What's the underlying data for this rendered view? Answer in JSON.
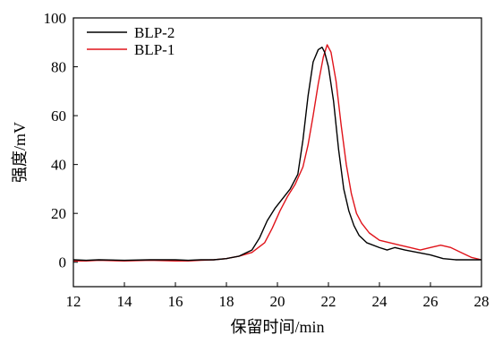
{
  "chart_data": {
    "type": "line",
    "xlabel": "保留时间/min",
    "ylabel": "强度/mV",
    "xlim": [
      12,
      28
    ],
    "ylim": [
      -10,
      100
    ],
    "xticks": [
      12,
      14,
      16,
      18,
      20,
      22,
      24,
      26,
      28
    ],
    "yticks": [
      0,
      20,
      40,
      60,
      80,
      100
    ],
    "grid": false,
    "legend_position": "top-left",
    "series": [
      {
        "name": "BLP-2",
        "color": "#000000",
        "x": [
          12,
          12.5,
          13,
          14,
          15,
          16,
          16.5,
          17,
          17.5,
          18,
          18.5,
          19,
          19.3,
          19.6,
          19.9,
          20.2,
          20.5,
          20.8,
          21.0,
          21.2,
          21.4,
          21.6,
          21.75,
          21.85,
          22.0,
          22.2,
          22.4,
          22.6,
          22.8,
          23.0,
          23.2,
          23.5,
          24.0,
          24.3,
          24.6,
          25.0,
          25.5,
          26.0,
          26.5,
          27.0,
          27.5,
          28
        ],
        "y": [
          1,
          0.8,
          1,
          0.8,
          1,
          1,
          0.8,
          1,
          1,
          1.5,
          2.5,
          5,
          10,
          17,
          22,
          26,
          30,
          36,
          50,
          68,
          82,
          87,
          88,
          86,
          80,
          66,
          46,
          30,
          21,
          15,
          11,
          8,
          6,
          5,
          6,
          5,
          4,
          3,
          1.5,
          1,
          1,
          1
        ]
      },
      {
        "name": "BLP-1",
        "color": "#e0141b",
        "x": [
          12,
          12.5,
          13,
          14,
          15,
          16,
          16.5,
          17,
          17.5,
          18,
          18.5,
          19,
          19.5,
          19.8,
          20.1,
          20.4,
          20.7,
          21.0,
          21.2,
          21.4,
          21.6,
          21.8,
          21.95,
          22.1,
          22.3,
          22.5,
          22.7,
          22.9,
          23.1,
          23.3,
          23.6,
          24.0,
          24.4,
          24.8,
          25.2,
          25.6,
          26.0,
          26.4,
          26.8,
          27.2,
          27.6,
          28
        ],
        "y": [
          0.5,
          0.5,
          0.8,
          0.5,
          0.8,
          0.5,
          0.5,
          0.8,
          1,
          1.5,
          2.5,
          4,
          8,
          14,
          21,
          27,
          32,
          39,
          48,
          60,
          73,
          84,
          89,
          86,
          74,
          56,
          40,
          28,
          20,
          16,
          12,
          9,
          8,
          7,
          6,
          5,
          6,
          7,
          6,
          4,
          2,
          1
        ]
      }
    ]
  }
}
